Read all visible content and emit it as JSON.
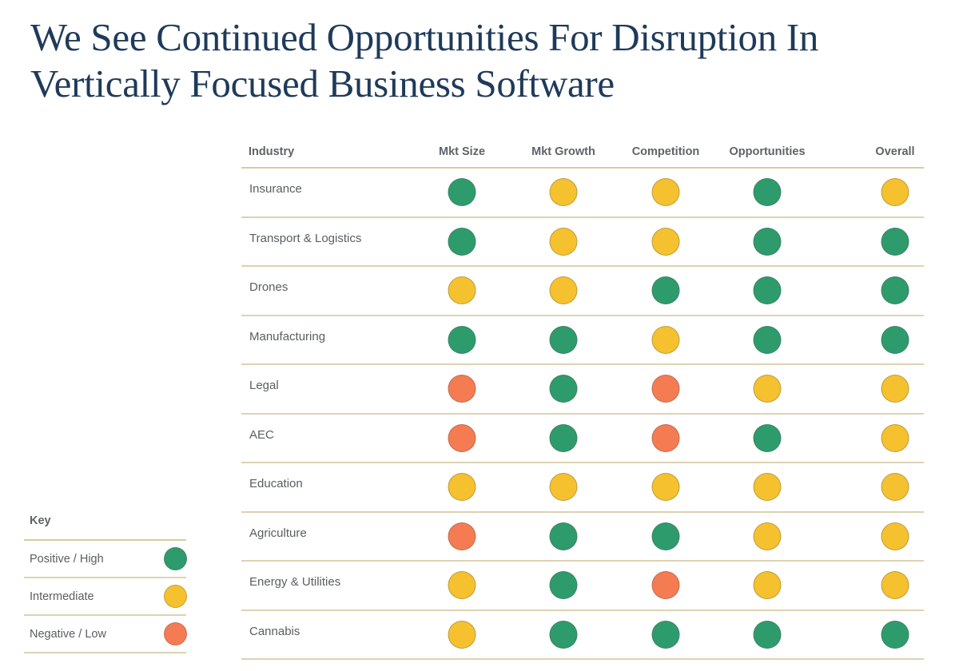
{
  "title": "We See Continued Opportunities For Disruption In Vertically Focused Business Software",
  "colors": {
    "positive": "#2e9b6c",
    "intermediate": "#f5c12e",
    "negative": "#f57b53"
  },
  "table": {
    "headers": [
      "Industry",
      "Mkt Size",
      "Mkt Growth",
      "Competition",
      "Opportunities",
      "Overall"
    ],
    "rows": [
      {
        "industry": "Insurance",
        "ratings": [
          "positive",
          "intermediate",
          "intermediate",
          "positive",
          "intermediate"
        ]
      },
      {
        "industry": "Transport & Logistics",
        "ratings": [
          "positive",
          "intermediate",
          "intermediate",
          "positive",
          "positive"
        ]
      },
      {
        "industry": "Drones",
        "ratings": [
          "intermediate",
          "intermediate",
          "positive",
          "positive",
          "positive"
        ]
      },
      {
        "industry": "Manufacturing",
        "ratings": [
          "positive",
          "positive",
          "intermediate",
          "positive",
          "positive"
        ]
      },
      {
        "industry": "Legal",
        "ratings": [
          "negative",
          "positive",
          "negative",
          "intermediate",
          "intermediate"
        ]
      },
      {
        "industry": "AEC",
        "ratings": [
          "negative",
          "positive",
          "negative",
          "positive",
          "intermediate"
        ]
      },
      {
        "industry": "Education",
        "ratings": [
          "intermediate",
          "intermediate",
          "intermediate",
          "intermediate",
          "intermediate"
        ]
      },
      {
        "industry": "Agriculture",
        "ratings": [
          "negative",
          "positive",
          "positive",
          "intermediate",
          "intermediate"
        ]
      },
      {
        "industry": "Energy & Utilities",
        "ratings": [
          "intermediate",
          "positive",
          "negative",
          "intermediate",
          "intermediate"
        ]
      },
      {
        "industry": "Cannabis",
        "ratings": [
          "intermediate",
          "positive",
          "positive",
          "positive",
          "positive"
        ]
      }
    ]
  },
  "key": {
    "title": "Key",
    "items": [
      {
        "label": "Positive / High",
        "rating": "positive"
      },
      {
        "label": "Intermediate",
        "rating": "intermediate"
      },
      {
        "label": "Negative / Low",
        "rating": "negative"
      }
    ]
  }
}
